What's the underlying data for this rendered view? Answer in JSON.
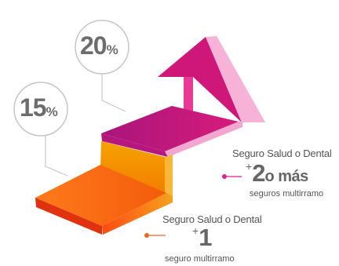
{
  "badges": {
    "low": {
      "number": "15",
      "symbol": "%"
    },
    "high": {
      "number": "20",
      "symbol": "%"
    }
  },
  "tiers": {
    "upper": {
      "caption": "Seguro Salud o Dental",
      "plus": "+",
      "count": "2",
      "extra": "o más",
      "subtitle": "seguros multirramo",
      "dot_color": "#e0218a"
    },
    "lower": {
      "caption": "Seguro Salud o Dental",
      "plus": "+",
      "count": "1",
      "subtitle": "seguro multirramo",
      "dot_color": "#f26522"
    }
  },
  "colors": {
    "orange": "#f26522",
    "magenta": "#d6197a",
    "pink": "#f49ac9",
    "gray": "#c8c8c8"
  }
}
